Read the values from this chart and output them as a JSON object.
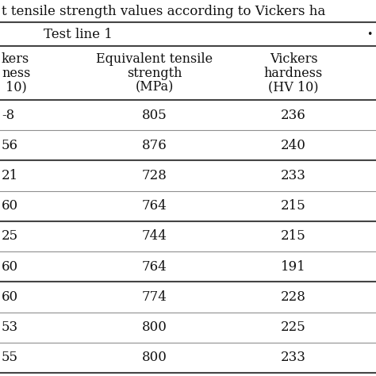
{
  "title": "t tensile strength values according to Vickers ha",
  "section_header": "Test line 1",
  "col1_header_lines": [
    "kers",
    "ness",
    " 10)"
  ],
  "col2_header_lines": [
    "Equivalent tensile",
    "strength",
    "(MPa)"
  ],
  "col3_header_lines": [
    "Vickers",
    "hardness",
    "(HV 10)"
  ],
  "col1_partial": [
    "-8",
    "56",
    "21",
    "60",
    "25",
    "60",
    "60",
    "53",
    "55"
  ],
  "col2_values": [
    "805",
    "876",
    "728",
    "764",
    "744",
    "764",
    "774",
    "800",
    "800"
  ],
  "col3_values": [
    "236",
    "240",
    "233",
    "215",
    "215",
    "191",
    "228",
    "225",
    "233"
  ],
  "group_sep_after": [
    1,
    3,
    5
  ],
  "background_color": "#ffffff",
  "text_color": "#111111",
  "line_color": "#444444",
  "title_fontsize": 12,
  "header_fontsize": 11.5,
  "data_fontsize": 12
}
